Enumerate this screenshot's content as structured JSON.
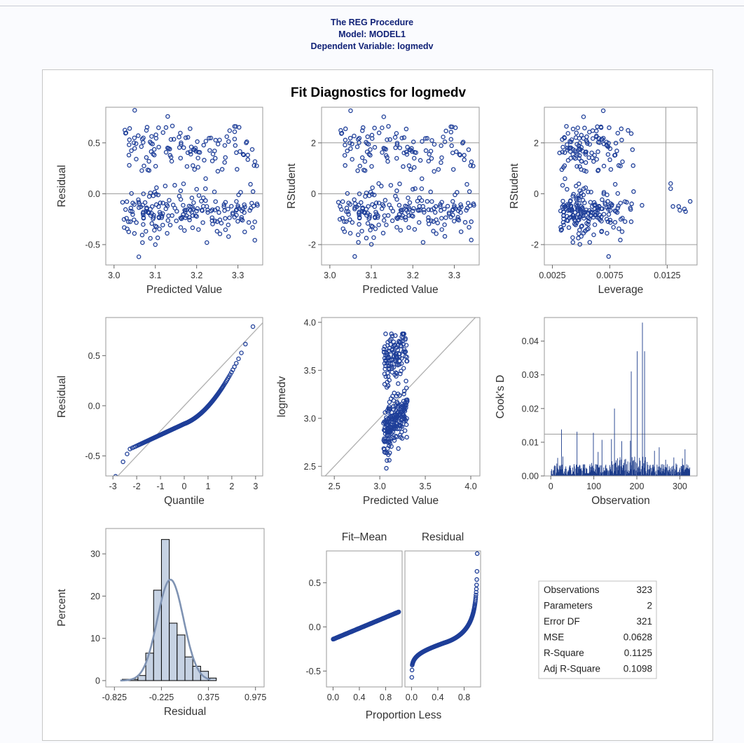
{
  "header": {
    "procedure": "The REG Procedure",
    "model": "Model: MODEL1",
    "dependent": "Dependent Variable: logmedv"
  },
  "panel": {
    "title": "Fit Diagnostics for logmedv"
  },
  "colors": {
    "marker": "#1f3f99",
    "refline": "#999999",
    "hist_fill": "#c6d2e3",
    "kde": "#7f93b3",
    "cooks": "#1a3a8a"
  },
  "chart_data": [
    {
      "type": "scatter",
      "name": "residual-vs-predicted",
      "xlabel": "Predicted Value",
      "ylabel": "Residual",
      "xlim": [
        2.98,
        3.36
      ],
      "ylim": [
        -0.7,
        0.85
      ],
      "xticks": [
        "3.0",
        "3.1",
        "3.2",
        "3.3"
      ],
      "yticks": [
        "-0.5",
        "0.0",
        "0.5"
      ],
      "reference_lines": {
        "y": [
          0
        ]
      },
      "point_count": 323,
      "sample_points": [
        [
          3.05,
          0.82
        ],
        [
          3.13,
          0.76
        ],
        [
          3.06,
          -0.62
        ],
        [
          3.28,
          0.62
        ],
        [
          3.1,
          -0.5
        ],
        [
          3.32,
          0.5
        ]
      ]
    },
    {
      "type": "scatter",
      "name": "rstudent-vs-predicted",
      "xlabel": "Predicted Value",
      "ylabel": "RStudent",
      "xlim": [
        2.98,
        3.36
      ],
      "ylim": [
        -2.8,
        3.4
      ],
      "xticks": [
        "3.0",
        "3.1",
        "3.2",
        "3.3"
      ],
      "yticks": [
        "-2",
        "0",
        "2"
      ],
      "reference_lines": {
        "y": [
          -2,
          0,
          2
        ]
      },
      "point_count": 323,
      "sample_points": [
        [
          3.05,
          3.3
        ],
        [
          3.13,
          3.05
        ],
        [
          3.1,
          -2.5
        ],
        [
          3.28,
          2.5
        ],
        [
          3.32,
          2.0
        ]
      ]
    },
    {
      "type": "scatter",
      "name": "rstudent-vs-leverage",
      "xlabel": "Leverage",
      "ylabel": "RStudent",
      "xlim": [
        0.0018,
        0.0151
      ],
      "ylim": [
        -2.8,
        3.4
      ],
      "xticks": [
        "0.0025",
        "0.0075",
        "0.0125"
      ],
      "yticks": [
        "-2",
        "0",
        "2"
      ],
      "reference_lines": {
        "y": [
          -2,
          2
        ],
        "x": [
          0.01238
        ]
      },
      "point_count": 323,
      "sample_points": [
        [
          0.0031,
          2.6
        ],
        [
          0.0056,
          -2.5
        ],
        [
          0.0128,
          0.4
        ],
        [
          0.0145,
          -0.3
        ],
        [
          0.0082,
          3.3
        ]
      ]
    },
    {
      "type": "scatter",
      "name": "residual-qq",
      "xlabel": "Quantile",
      "ylabel": "Residual",
      "xlim": [
        -3.3,
        3.3
      ],
      "ylim": [
        -0.7,
        0.88
      ],
      "xticks": [
        "-3",
        "-2",
        "-1",
        "0",
        "1",
        "2",
        "3"
      ],
      "yticks": [
        "-0.5",
        "0.0",
        "0.5"
      ],
      "reference_line": "y = 0.2506 x",
      "point_count": 323,
      "sample_points": [
        [
          -2.9,
          -0.62
        ],
        [
          -2.5,
          -0.44
        ],
        [
          0,
          -0.22
        ],
        [
          1.0,
          0.07
        ],
        [
          1.8,
          0.57
        ],
        [
          2.9,
          0.83
        ]
      ]
    },
    {
      "type": "scatter",
      "name": "observed-vs-predicted",
      "xlabel": "Predicted Value",
      "ylabel": "logmedv",
      "xlim": [
        2.36,
        4.1
      ],
      "ylim": [
        2.4,
        4.05
      ],
      "xticks": [
        "2.5",
        "3.0",
        "3.5",
        "4.0"
      ],
      "yticks": [
        "2.5",
        "3.0",
        "3.5",
        "4.0"
      ],
      "reference_line": "y = x",
      "point_count": 323,
      "sample_points": [
        [
          3.05,
          2.48
        ],
        [
          3.1,
          3.88
        ],
        [
          3.3,
          3.6
        ],
        [
          3.15,
          3.1
        ]
      ]
    },
    {
      "type": "bar",
      "name": "cooks-d-vs-observation",
      "xlabel": "Observation",
      "ylabel": "Cook's D",
      "xlim": [
        -15,
        340
      ],
      "ylim": [
        0,
        0.047
      ],
      "xticks": [
        "0",
        "100",
        "200",
        "300"
      ],
      "yticks": [
        "0.00",
        "0.01",
        "0.02",
        "0.03",
        "0.04"
      ],
      "reference_lines": {
        "y": [
          0.0124
        ]
      },
      "observations": 323,
      "notable": [
        {
          "x": 213,
          "y": 0.0455
        },
        {
          "x": 201,
          "y": 0.037
        },
        {
          "x": 218,
          "y": 0.037
        },
        {
          "x": 187,
          "y": 0.031
        },
        {
          "x": 148,
          "y": 0.02
        }
      ]
    },
    {
      "type": "bar",
      "name": "residual-histogram",
      "xlabel": "Residual",
      "ylabel": "Percent",
      "xlim": [
        -0.935,
        1.085
      ],
      "ylim": [
        -1.5,
        36
      ],
      "xticks": [
        "-0.825",
        "-0.225",
        "0.375",
        "0.975"
      ],
      "yticks": [
        "0",
        "10",
        "20",
        "30"
      ],
      "bins": [
        {
          "from": -0.725,
          "to": -0.625,
          "percent": 0.3
        },
        {
          "from": -0.625,
          "to": -0.525,
          "percent": 0.3
        },
        {
          "from": -0.525,
          "to": -0.425,
          "percent": 1.2
        },
        {
          "from": -0.425,
          "to": -0.325,
          "percent": 6.5
        },
        {
          "from": -0.325,
          "to": -0.225,
          "percent": 21.4
        },
        {
          "from": -0.225,
          "to": -0.125,
          "percent": 33.4
        },
        {
          "from": -0.125,
          "to": -0.025,
          "percent": 13.6
        },
        {
          "from": -0.025,
          "to": 0.075,
          "percent": 10.8
        },
        {
          "from": 0.075,
          "to": 0.175,
          "percent": 5.6
        },
        {
          "from": 0.175,
          "to": 0.275,
          "percent": 3.4
        },
        {
          "from": 0.275,
          "to": 0.375,
          "percent": 2.2
        },
        {
          "from": 0.375,
          "to": 0.475,
          "percent": 0.6
        }
      ],
      "normal_curve": {
        "mean": -0.11,
        "sd": 0.168,
        "peak_percent": 23.9
      }
    },
    {
      "type": "scatter",
      "name": "fit-mean-residual-spread",
      "panels": [
        "Fit–Mean",
        "Residual"
      ],
      "xlabel": "Proportion Less",
      "xlim": [
        -0.1,
        1.05
      ],
      "ylim": [
        -0.68,
        0.86
      ],
      "xticks": [
        "0.0",
        "0.4",
        "0.8"
      ],
      "yticks": [
        "-0.5",
        "0.0",
        "0.5"
      ],
      "fit_mean_range": [
        -0.14,
        0.17
      ],
      "residual_range": [
        -0.62,
        0.83
      ]
    }
  ],
  "stats": [
    {
      "label": "Observations",
      "value": "323"
    },
    {
      "label": "Parameters",
      "value": "2"
    },
    {
      "label": "Error DF",
      "value": "321"
    },
    {
      "label": "MSE",
      "value": "0.0628"
    },
    {
      "label": "R-Square",
      "value": "0.1125"
    },
    {
      "label": "Adj R-Square",
      "value": "0.1098"
    }
  ]
}
